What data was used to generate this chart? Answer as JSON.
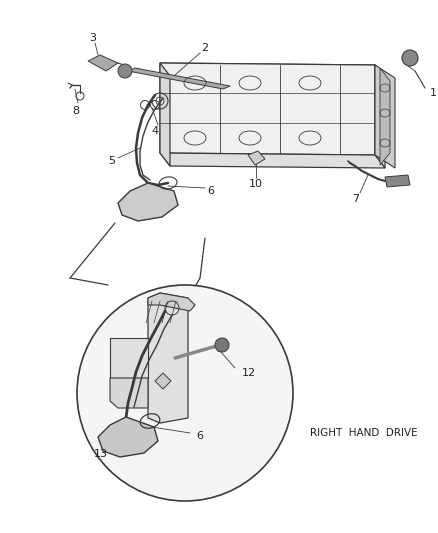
{
  "bg_color": "#ffffff",
  "line_color": "#3a3a3a",
  "text_color": "#222222",
  "fig_width": 4.38,
  "fig_height": 5.33,
  "dpi": 100,
  "right_hand_drive_text": "RIGHT  HAND  DRIVE"
}
